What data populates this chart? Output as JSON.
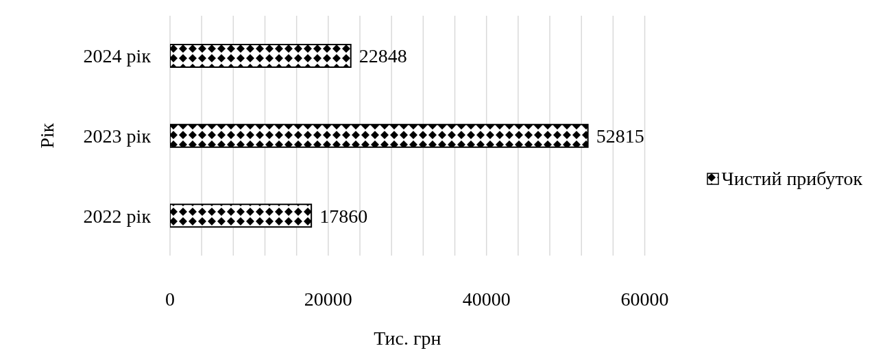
{
  "chart_data": {
    "type": "bar",
    "orientation": "horizontal",
    "categories": [
      "2024 рік",
      "2023 рік",
      "2022 рік"
    ],
    "series": [
      {
        "name": "Чистий прибуток",
        "color": "#000000",
        "values": [
          22848,
          52815,
          17860
        ]
      }
    ],
    "xlabel": "Тис. грн",
    "ylabel": "Рік",
    "xlim": [
      0,
      60000
    ],
    "xticks": [
      0,
      {
        "value": 4000,
        "label": null
      },
      {
        "value": 8000,
        "label": null
      },
      {
        "value": 12000,
        "label": null
      },
      {
        "value": 16000,
        "label": null
      },
      20000,
      {
        "value": 24000,
        "label": null
      },
      {
        "value": 28000,
        "label": null
      },
      {
        "value": 32000,
        "label": null
      },
      {
        "value": 36000,
        "label": null
      },
      40000,
      {
        "value": 44000,
        "label": null
      },
      {
        "value": 48000,
        "label": null
      },
      {
        "value": 52000,
        "label": null
      },
      {
        "value": 56000,
        "label": null
      },
      60000
    ],
    "grid": "x",
    "legend": "right",
    "data_labels": true
  }
}
